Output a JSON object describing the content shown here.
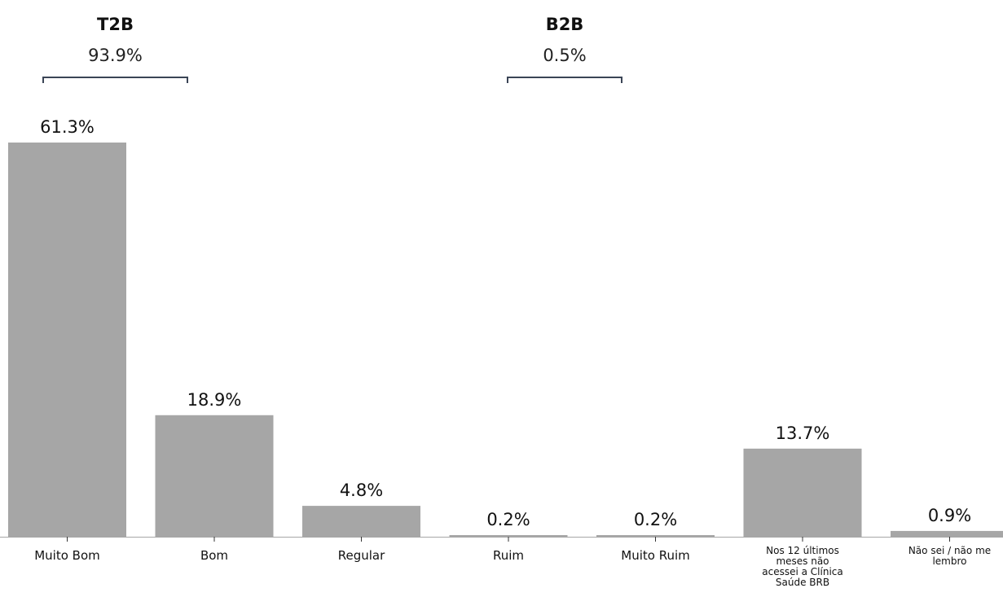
{
  "chart_data": {
    "type": "bar",
    "categories": [
      "Muito Bom",
      "Bom",
      "Regular",
      "Ruim",
      "Muito Ruim",
      "Nos 12 últimos meses não acessei a Clínica Saúde BRB",
      "Não sei / não me lembro"
    ],
    "category_lines": [
      [
        "Muito Bom"
      ],
      [
        "Bom"
      ],
      [
        "Regular"
      ],
      [
        "Ruim"
      ],
      [
        "Muito Ruim"
      ],
      [
        "Nos 12 últimos",
        "meses não",
        "acessei a Clínica",
        "Saúde BRB"
      ],
      [
        "Não sei / não me",
        "lembro"
      ]
    ],
    "values": [
      61.3,
      18.9,
      4.8,
      0.2,
      0.2,
      13.7,
      0.9
    ],
    "value_labels": [
      "61.3%",
      "18.9%",
      "4.8%",
      "0.2%",
      "0.2%",
      "13.7%",
      "0.9%"
    ],
    "ylim": [
      0,
      61.3
    ],
    "bar_color": "#a6a6a6",
    "groups": [
      {
        "title": "T2B",
        "value": "93.9%",
        "from": 0,
        "to": 1
      },
      {
        "title": "B2B",
        "value": "0.5%",
        "from": 3,
        "to": 4
      }
    ],
    "grid": false,
    "legend": "none"
  }
}
